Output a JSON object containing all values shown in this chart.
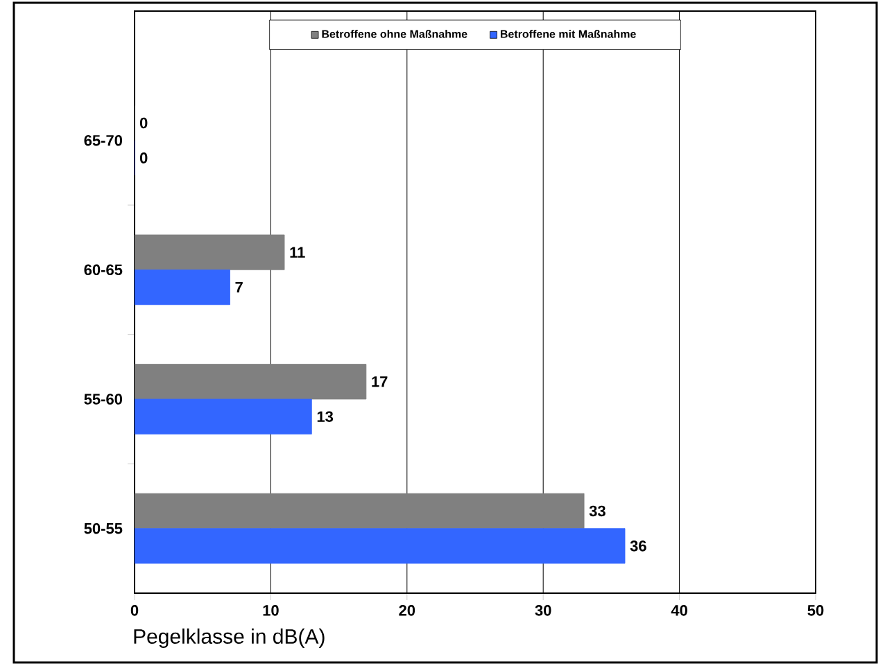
{
  "chart_data": {
    "type": "bar",
    "orientation": "horizontal",
    "categories": [
      "65-70",
      "60-65",
      "55-60",
      "50-55"
    ],
    "series": [
      {
        "name": "Betroffene ohne Maßnahme",
        "color": "#808080",
        "values": [
          0,
          11,
          17,
          33
        ]
      },
      {
        "name": "Betroffene mit Maßnahme",
        "color": "#3366ff",
        "values": [
          0,
          7,
          13,
          36
        ]
      }
    ],
    "xlim": [
      0,
      50
    ],
    "xticks": [
      0,
      10,
      20,
      30,
      40,
      50
    ],
    "xlabel": "Pegelklasse in dB(A)",
    "grid": "x",
    "legend": "top",
    "data_labels": true
  }
}
